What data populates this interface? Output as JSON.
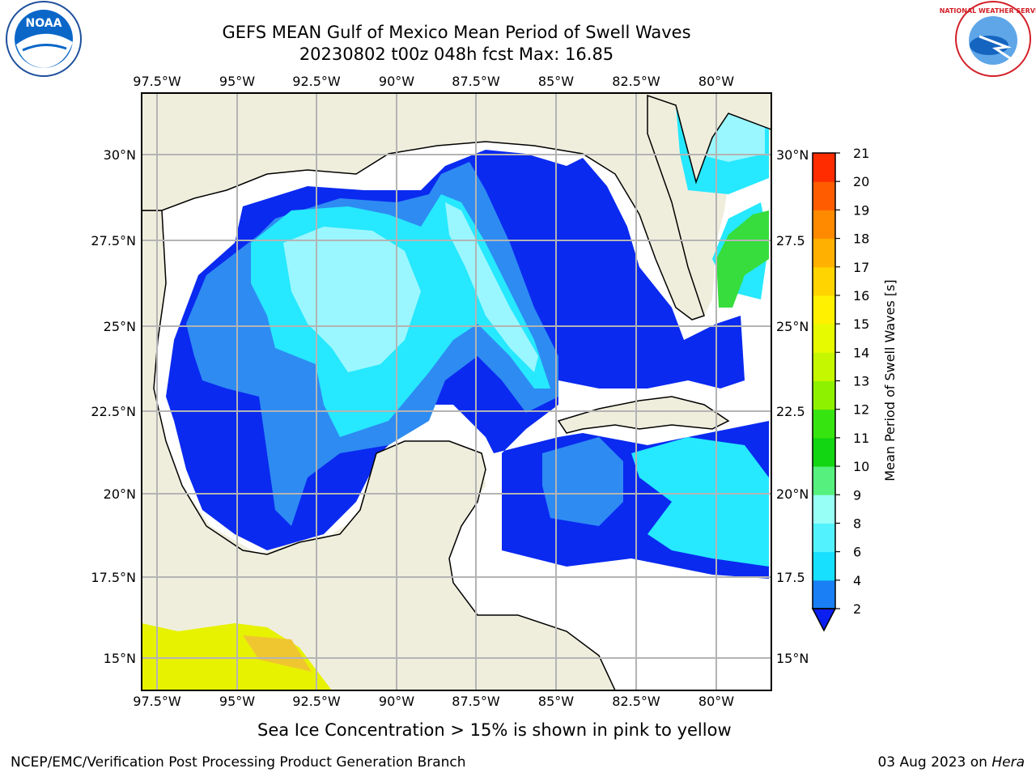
{
  "header": {
    "title_line1": "GEFS MEAN Gulf of Mexico Mean Period of Swell Waves",
    "title_line2": "20230802 t00z 048h fcst   Max: 16.85"
  },
  "logos": {
    "left": {
      "name": "noaa-logo",
      "text": "NOAA"
    },
    "right": {
      "name": "nws-logo",
      "text": "NATIONAL WEATHER SERVICE"
    }
  },
  "map": {
    "lon_labels": [
      "97.5°W",
      "95°W",
      "92.5°W",
      "90°W",
      "87.5°W",
      "85°W",
      "82.5°W",
      "80°W"
    ],
    "lat_labels_left": [
      "30°N",
      "27.5°N",
      "25°N",
      "22.5°N",
      "20°N",
      "17.5°N",
      "15°N"
    ],
    "lat_labels_right": [
      "30°N",
      "27.5",
      "25°N",
      "22.5",
      "20°N",
      "17.5",
      "15°N"
    ],
    "colors": {
      "land": "#efeedd",
      "grid": "#b4b4b4",
      "sea_2_4": "#0a2af0",
      "sea_4_6": "#2e8bf2",
      "sea_6_8": "#26e8ff",
      "sea_8_9": "#9af7ff",
      "sea_9_12": "#36dd3c",
      "ice": "#e7f200"
    }
  },
  "colorbar": {
    "label": "Mean Period of Swell Waves [s]",
    "ticks": [
      "2",
      "4",
      "6",
      "8",
      "9",
      "10",
      "11",
      "12",
      "13",
      "14",
      "15",
      "16",
      "17",
      "18",
      "19",
      "20",
      "21"
    ],
    "colors": [
      "#0b1ff0",
      "#1a7ff5",
      "#17e0ff",
      "#52f2ff",
      "#98fff7",
      "#55f07d",
      "#11d611",
      "#36e410",
      "#8ef100",
      "#c5f700",
      "#e7fa00",
      "#fff100",
      "#ffd400",
      "#ffb000",
      "#ff8a00",
      "#ff5c00",
      "#ff2c00",
      "#ff0000"
    ]
  },
  "footer": {
    "note": "Sea Ice Concentration > 15% is shown in pink to yellow",
    "credit_left": "NCEP/EMC/Verification Post Processing Product Generation Branch",
    "date": "03 Aug 2023 on ",
    "host": "Hera"
  }
}
